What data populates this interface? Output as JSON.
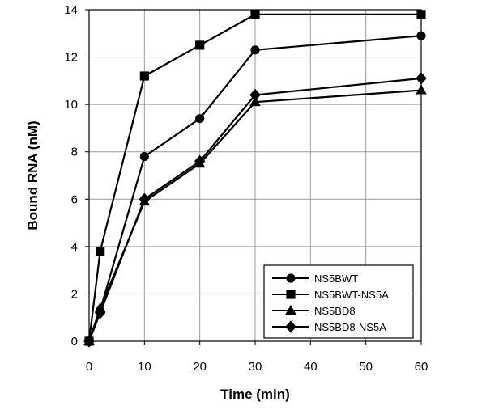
{
  "chart_data": {
    "type": "line",
    "xlabel": "Time (min)",
    "ylabel": "Bound RNA (nM)",
    "xlim": [
      0,
      60
    ],
    "ylim": [
      0,
      14
    ],
    "xticks": [
      "0",
      "10",
      "20",
      "30",
      "40",
      "50",
      "60"
    ],
    "yticks": [
      "0",
      "2",
      "4",
      "6",
      "8",
      "10",
      "12",
      "14"
    ],
    "grid": true,
    "legend_position": "bottom-right",
    "series": [
      {
        "name": "NS5BWT",
        "marker": "circle",
        "x": [
          0,
          2,
          10,
          20,
          30,
          60
        ],
        "y": [
          0,
          1.3,
          7.8,
          9.4,
          12.3,
          12.9
        ]
      },
      {
        "name": "NS5BWT-NS5A",
        "marker": "square",
        "x": [
          0,
          2,
          10,
          20,
          30,
          60
        ],
        "y": [
          0,
          3.8,
          11.2,
          12.5,
          13.8,
          13.8
        ]
      },
      {
        "name": "NS5BD8",
        "marker": "triangle",
        "x": [
          0,
          2,
          10,
          20,
          30,
          60
        ],
        "y": [
          0,
          1.4,
          5.9,
          7.5,
          10.1,
          10.6
        ]
      },
      {
        "name": "NS5BD8-NS5A",
        "marker": "diamond",
        "x": [
          0,
          2,
          10,
          20,
          30,
          60
        ],
        "y": [
          0,
          1.2,
          6.0,
          7.6,
          10.4,
          11.1
        ]
      }
    ]
  }
}
